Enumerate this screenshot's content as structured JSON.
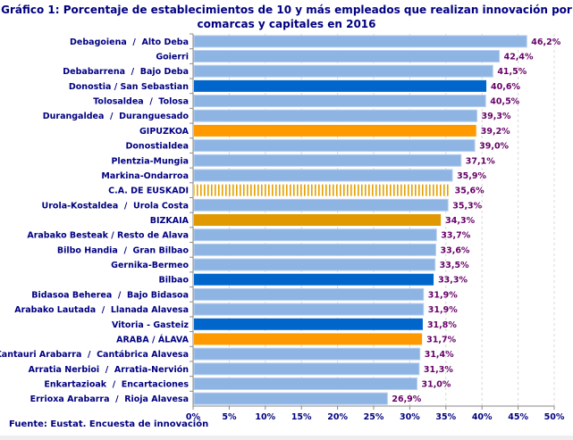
{
  "chart_data": {
    "type": "bar",
    "orientation": "horizontal",
    "title": "Gráfico 1: Porcentaje de establecimientos de 10 y más empleados que realizan innovación por comarcas y capitales en 2016",
    "source": "Fuente: Eustat. Encuesta de innovación",
    "categories": [
      "Debagoiena  /  Alto Deba",
      "Goierri",
      "Debabarrena  /  Bajo Deba",
      "Donostia / San Sebastian",
      "Tolosaldea  /  Tolosa",
      "Durangaldea  /  Duranguesado",
      "GIPUZKOA",
      "Donostialdea",
      "Plentzia-Mungia",
      "Markina-Ondarroa",
      "C.A. DE EUSKADI",
      "Urola-Kostaldea  /  Urola Costa",
      "BIZKAIA",
      "Arabako Besteak / Resto de Alava",
      "Bilbo Handia  /  Gran Bilbao",
      "Gernika-Bermeo",
      "Bilbao",
      "Bidasoa Beherea  /  Bajo Bidasoa",
      "Arabako Lautada  /  Llanada Alavesa",
      "Vitoria - Gasteiz",
      "ARABA / ÁLAVA",
      "Kantauri Arabarra  /  Cantábrica Alavesa",
      "Arratia Nerbioi  /  Arratia-Nervión",
      "Enkartazioak  /  Encartaciones",
      "Errioxa Arabarra  /  Rioja Alavesa"
    ],
    "values": [
      46.2,
      42.4,
      41.5,
      40.6,
      40.5,
      39.3,
      39.2,
      39.0,
      37.1,
      35.9,
      35.6,
      35.3,
      34.3,
      33.7,
      33.6,
      33.5,
      33.3,
      31.9,
      31.9,
      31.8,
      31.7,
      31.4,
      31.3,
      31.0,
      26.9
    ],
    "value_labels": [
      "46,2%",
      "42,4%",
      "41,5%",
      "40,6%",
      "40,5%",
      "39,3%",
      "39,2%",
      "39,0%",
      "37,1%",
      "35,9%",
      "35,6%",
      "35,3%",
      "34,3%",
      "33,7%",
      "33,6%",
      "33,5%",
      "33,3%",
      "31,9%",
      "31,9%",
      "31,8%",
      "31,7%",
      "31,4%",
      "31,3%",
      "31,0%",
      "26,9%"
    ],
    "bar_kinds": [
      "comarca",
      "comarca",
      "comarca",
      "capital",
      "comarca",
      "comarca",
      "gipuzkoa",
      "comarca",
      "comarca",
      "comarca",
      "euskadi",
      "comarca",
      "bizkaia",
      "comarca",
      "comarca",
      "comarca",
      "capital",
      "comarca",
      "comarca",
      "capital",
      "araba",
      "comarca",
      "comarca",
      "comarca",
      "comarca"
    ],
    "xlim": [
      0,
      50
    ],
    "xticks": [
      "0%",
      "5%",
      "10%",
      "15%",
      "20%",
      "25%",
      "30%",
      "35%",
      "40%",
      "45%",
      "50%"
    ],
    "grid": true,
    "colors": {
      "comarca": "#8db4e2",
      "capital": "#0066cc",
      "gipuzkoa": "#ff9900",
      "bizkaia": "#e09900",
      "araba": "#ff9900",
      "euskadi": "#e6a000",
      "label_text": "#000080",
      "value_text": "#660066"
    }
  }
}
